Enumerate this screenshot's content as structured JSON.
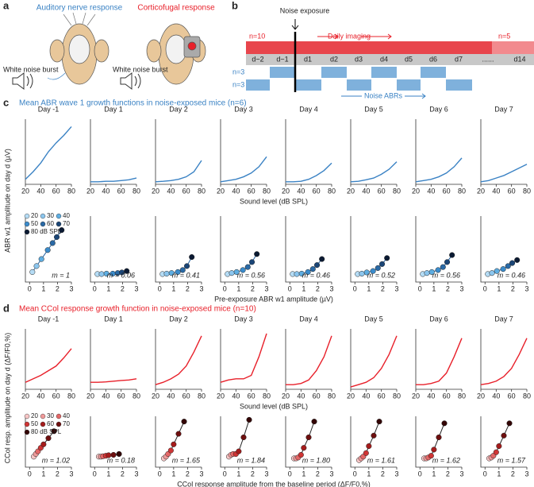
{
  "panel_a": {
    "label": "a",
    "left_title": "Auditory nerve response",
    "right_title": "Corticofugal response",
    "left_stimulus": "White noise burst",
    "right_stimulus": "White noise burst"
  },
  "panel_b": {
    "label": "b",
    "exposure": "Noise exposure",
    "n_top": "n=10",
    "imaging": "Daily imaging",
    "n_late": "n=5",
    "days": [
      "d−2",
      "d−1",
      "d1",
      "d2",
      "d3",
      "d4",
      "d5",
      "d6",
      "d7",
      "......",
      "d14"
    ],
    "n_abr1": "n=3",
    "n_abr2": "n=3",
    "abr": "Noise ABRs"
  },
  "chart_data": [
    {
      "type": "line",
      "panel_label": "c",
      "title": "Mean ABR wave 1 growth functions in noise-exposed mice (n=6)",
      "ylabel": "ABR w1 amplitude on day d (µV)",
      "xlabel": "Sound level (dB SPL)",
      "color": "#3a82c4",
      "x": [
        20,
        30,
        40,
        50,
        60,
        70,
        80
      ],
      "xlim": [
        20,
        80
      ],
      "xticks": [
        20,
        40,
        60,
        80
      ],
      "ylim": [
        0,
        2.6
      ],
      "panels": [
        {
          "title": "Day -1",
          "values": [
            0.2,
            0.5,
            0.85,
            1.3,
            1.65,
            1.95,
            2.3
          ]
        },
        {
          "title": "Day 1",
          "values": [
            0.1,
            0.1,
            0.12,
            0.12,
            0.15,
            0.18,
            0.25
          ]
        },
        {
          "title": "Day 2",
          "values": [
            0.1,
            0.12,
            0.15,
            0.2,
            0.3,
            0.5,
            0.95
          ]
        },
        {
          "title": "Day 3",
          "values": [
            0.1,
            0.15,
            0.2,
            0.3,
            0.45,
            0.7,
            1.1
          ]
        },
        {
          "title": "Day 4",
          "values": [
            0.1,
            0.1,
            0.12,
            0.2,
            0.35,
            0.55,
            0.85
          ]
        },
        {
          "title": "Day 5",
          "values": [
            0.1,
            0.12,
            0.18,
            0.25,
            0.4,
            0.6,
            0.9
          ]
        },
        {
          "title": "Day 6",
          "values": [
            0.1,
            0.15,
            0.2,
            0.3,
            0.45,
            0.7,
            1.05
          ]
        },
        {
          "title": "Day 7",
          "values": [
            0.1,
            0.15,
            0.25,
            0.35,
            0.5,
            0.65,
            0.8
          ]
        }
      ]
    },
    {
      "type": "scatter",
      "xlabel": "Pre-exposure ABR w1 amplitude (µV)",
      "line_color": "#1f5fa0",
      "x": [
        0.2,
        0.5,
        0.85,
        1.3,
        1.65,
        1.95,
        2.3
      ],
      "xlim": [
        -0.3,
        3
      ],
      "xticks": [
        0,
        1,
        2,
        3
      ],
      "ylim": [
        -0.3,
        3
      ],
      "legend": [
        {
          "name": "20",
          "color": "#b5dcf5"
        },
        {
          "name": "30",
          "color": "#8cc6ee"
        },
        {
          "name": "40",
          "color": "#5eaee2"
        },
        {
          "name": "50",
          "color": "#3b8ccc"
        },
        {
          "name": "60",
          "color": "#2a6aa6"
        },
        {
          "name": "70",
          "color": "#1b4677"
        },
        {
          "name": "80 dB SPL",
          "color": "#0b1a33"
        }
      ],
      "panels": [
        {
          "values": [
            0.2,
            0.5,
            0.85,
            1.3,
            1.65,
            1.95,
            2.3
          ],
          "annotation": "m = 1"
        },
        {
          "values": [
            0.1,
            0.1,
            0.12,
            0.12,
            0.15,
            0.18,
            0.25
          ],
          "annotation": "m = 0.06"
        },
        {
          "values": [
            0.1,
            0.12,
            0.15,
            0.2,
            0.3,
            0.5,
            0.95
          ],
          "annotation": "m = 0.41"
        },
        {
          "values": [
            0.1,
            0.15,
            0.2,
            0.3,
            0.45,
            0.7,
            1.1
          ],
          "annotation": "m = 0.56"
        },
        {
          "values": [
            0.1,
            0.1,
            0.12,
            0.2,
            0.35,
            0.55,
            0.85
          ],
          "annotation": "m = 0.46"
        },
        {
          "values": [
            0.1,
            0.12,
            0.18,
            0.25,
            0.4,
            0.6,
            0.9
          ],
          "annotation": "m = 0.52"
        },
        {
          "values": [
            0.1,
            0.15,
            0.2,
            0.3,
            0.45,
            0.7,
            1.05
          ],
          "annotation": "m = 0.56"
        },
        {
          "values": [
            0.1,
            0.15,
            0.25,
            0.35,
            0.5,
            0.65,
            0.8
          ],
          "annotation": "m = 0.46"
        }
      ]
    },
    {
      "type": "line",
      "panel_label": "d",
      "title": "Mean CCol response growth function in noise-exposed mice (n=10)",
      "ylabel": "CCol resp. amplitude on day d (ΔF/F0,%)",
      "xlabel": "Sound level (dB SPL)",
      "color": "#e8202a",
      "x": [
        20,
        30,
        40,
        50,
        60,
        70,
        80
      ],
      "xlim": [
        20,
        80
      ],
      "xticks": [
        20,
        40,
        60,
        80
      ],
      "ylim": [
        0,
        2.6
      ],
      "panels": [
        {
          "title": "Day -1",
          "values": [
            0.3,
            0.45,
            0.6,
            0.8,
            1.0,
            1.35,
            1.75
          ]
        },
        {
          "title": "Day 1",
          "values": [
            0.3,
            0.3,
            0.32,
            0.35,
            0.38,
            0.4,
            0.45
          ]
        },
        {
          "title": "Day 2",
          "values": [
            0.2,
            0.3,
            0.45,
            0.65,
            1.0,
            1.6,
            2.3
          ]
        },
        {
          "title": "Day 3",
          "values": [
            0.3,
            0.4,
            0.45,
            0.45,
            0.6,
            1.4,
            2.4
          ]
        },
        {
          "title": "Day 4",
          "values": [
            0.2,
            0.2,
            0.25,
            0.4,
            0.8,
            1.4,
            2.3
          ]
        },
        {
          "title": "Day 5",
          "values": [
            0.1,
            0.2,
            0.3,
            0.5,
            0.9,
            1.5,
            2.3
          ]
        },
        {
          "title": "Day 6",
          "values": [
            0.2,
            0.2,
            0.25,
            0.35,
            0.7,
            1.4,
            2.2
          ]
        },
        {
          "title": "Day 7",
          "values": [
            0.2,
            0.25,
            0.35,
            0.55,
            0.9,
            1.5,
            2.2
          ]
        }
      ]
    },
    {
      "type": "scatter",
      "xlabel": "CCol response amplitude from the baseline period (ΔF/F0,%)",
      "line_color": "#222222",
      "x": [
        0.3,
        0.45,
        0.6,
        0.8,
        1.0,
        1.35,
        1.75
      ],
      "xlim": [
        -0.3,
        3
      ],
      "xticks": [
        0,
        1,
        2,
        3
      ],
      "ylim": [
        -0.3,
        2.6
      ],
      "legend": [
        {
          "name": "20",
          "color": "#f7c6c6"
        },
        {
          "name": "30",
          "color": "#f09a9a"
        },
        {
          "name": "40",
          "color": "#e46767"
        },
        {
          "name": "50",
          "color": "#cf3535"
        },
        {
          "name": "60",
          "color": "#a51c1c"
        },
        {
          "name": "70",
          "color": "#6e0f0f"
        },
        {
          "name": "80 dB SPL",
          "color": "#330505"
        }
      ],
      "panels": [
        {
          "values": [
            0.3,
            0.45,
            0.6,
            0.8,
            1.0,
            1.35,
            1.75
          ],
          "annotation": "m = 1.02"
        },
        {
          "values": [
            0.3,
            0.3,
            0.32,
            0.35,
            0.38,
            0.4,
            0.45
          ],
          "annotation": "m = 0.18"
        },
        {
          "values": [
            0.2,
            0.3,
            0.45,
            0.65,
            1.0,
            1.6,
            2.3
          ],
          "annotation": "m = 1.65"
        },
        {
          "values": [
            0.3,
            0.4,
            0.45,
            0.45,
            0.6,
            1.4,
            2.4
          ],
          "annotation": "m = 1.84"
        },
        {
          "values": [
            0.2,
            0.2,
            0.25,
            0.4,
            0.8,
            1.4,
            2.3
          ],
          "annotation": "m = 1.80"
        },
        {
          "values": [
            0.1,
            0.2,
            0.3,
            0.5,
            0.9,
            1.5,
            2.3
          ],
          "annotation": "m = 1.61"
        },
        {
          "values": [
            0.2,
            0.2,
            0.25,
            0.35,
            0.7,
            1.4,
            2.2
          ],
          "annotation": "m = 1.62"
        },
        {
          "values": [
            0.2,
            0.25,
            0.35,
            0.55,
            0.9,
            1.5,
            2.2
          ],
          "annotation": "m = 1.57"
        }
      ]
    }
  ]
}
